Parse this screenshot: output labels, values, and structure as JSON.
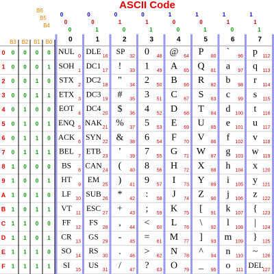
{
  "title": "ASCII Code",
  "header": {
    "high_bits": [
      "B6",
      "B5",
      "B4"
    ],
    "low_bits": [
      "B3",
      "B2",
      "B1",
      "B0"
    ]
  },
  "columns": [
    {
      "label": "0",
      "bits": [
        "0",
        "0",
        "0"
      ]
    },
    {
      "label": "1",
      "bits": [
        "0",
        "0",
        "1"
      ]
    },
    {
      "label": "2",
      "bits": [
        "0",
        "1",
        "0"
      ]
    },
    {
      "label": "3",
      "bits": [
        "0",
        "1",
        "1"
      ]
    },
    {
      "label": "4",
      "bits": [
        "1",
        "0",
        "0"
      ]
    },
    {
      "label": "5",
      "bits": [
        "1",
        "0",
        "1"
      ]
    },
    {
      "label": "6",
      "bits": [
        "1",
        "1",
        "0"
      ]
    },
    {
      "label": "7",
      "bits": [
        "1",
        "1",
        "1"
      ]
    }
  ],
  "rows": [
    {
      "label": "0",
      "bits": [
        "0",
        "0",
        "0",
        "0"
      ],
      "cells": [
        [
          "NUL",
          0
        ],
        [
          "DLE",
          16
        ],
        [
          "SP",
          32
        ],
        [
          "0",
          48
        ],
        [
          "@",
          64
        ],
        [
          "P",
          80
        ],
        [
          "`",
          96
        ],
        [
          "p",
          112
        ]
      ]
    },
    {
      "label": "1",
      "bits": [
        "0",
        "0",
        "0",
        "1"
      ],
      "cells": [
        [
          "SOH",
          1
        ],
        [
          "DC1",
          17
        ],
        [
          "!",
          33
        ],
        [
          "1",
          49
        ],
        [
          "A",
          65
        ],
        [
          "Q",
          81
        ],
        [
          "a",
          97
        ],
        [
          "q",
          113
        ]
      ]
    },
    {
      "label": "2",
      "bits": [
        "0",
        "0",
        "1",
        "0"
      ],
      "cells": [
        [
          "STX",
          2
        ],
        [
          "DC2",
          18
        ],
        [
          "\"",
          34
        ],
        [
          "2",
          50
        ],
        [
          "B",
          66
        ],
        [
          "R",
          82
        ],
        [
          "b",
          98
        ],
        [
          "r",
          114
        ]
      ]
    },
    {
      "label": "3",
      "bits": [
        "0",
        "0",
        "1",
        "1"
      ],
      "cells": [
        [
          "ETX",
          3
        ],
        [
          "DC3",
          19
        ],
        [
          "#",
          35
        ],
        [
          "3",
          51
        ],
        [
          "C",
          67
        ],
        [
          "S",
          83
        ],
        [
          "c",
          99
        ],
        [
          "s",
          115
        ]
      ]
    },
    {
      "label": "4",
      "bits": [
        "0",
        "1",
        "0",
        "0"
      ],
      "cells": [
        [
          "EOT",
          4
        ],
        [
          "DC4",
          20
        ],
        [
          "$",
          36
        ],
        [
          "4",
          52
        ],
        [
          "D",
          68
        ],
        [
          "T",
          84
        ],
        [
          "d",
          100
        ],
        [
          "t",
          116
        ]
      ]
    },
    {
      "label": "5",
      "bits": [
        "0",
        "1",
        "0",
        "1"
      ],
      "cells": [
        [
          "ENQ",
          5
        ],
        [
          "NAK",
          21
        ],
        [
          "%",
          37
        ],
        [
          "5",
          53
        ],
        [
          "E",
          69
        ],
        [
          "U",
          85
        ],
        [
          "e",
          101
        ],
        [
          "u",
          117
        ]
      ]
    },
    {
      "label": "6",
      "bits": [
        "0",
        "1",
        "1",
        "0"
      ],
      "cells": [
        [
          "ACK",
          6
        ],
        [
          "SYN",
          22
        ],
        [
          "&",
          38
        ],
        [
          "6",
          54
        ],
        [
          "F",
          70
        ],
        [
          "V",
          86
        ],
        [
          "f",
          102
        ],
        [
          "v",
          118
        ]
      ]
    },
    {
      "label": "7",
      "bits": [
        "0",
        "1",
        "1",
        "1"
      ],
      "cells": [
        [
          "BEL",
          7
        ],
        [
          "ETB",
          23
        ],
        [
          "'",
          39
        ],
        [
          "7",
          55
        ],
        [
          "G",
          71
        ],
        [
          "W",
          87
        ],
        [
          "g",
          103
        ],
        [
          "w",
          119
        ]
      ]
    },
    {
      "label": "8",
      "bits": [
        "1",
        "0",
        "0",
        "0"
      ],
      "cells": [
        [
          "BS",
          8
        ],
        [
          "CAN",
          24
        ],
        [
          "(",
          40
        ],
        [
          "8",
          56
        ],
        [
          "H",
          72
        ],
        [
          "X",
          88
        ],
        [
          "h",
          104
        ],
        [
          "x",
          120
        ]
      ]
    },
    {
      "label": "9",
      "bits": [
        "1",
        "0",
        "0",
        "1"
      ],
      "cells": [
        [
          "HT",
          9
        ],
        [
          "EM",
          25
        ],
        [
          ")",
          41
        ],
        [
          "9",
          57
        ],
        [
          "I",
          73
        ],
        [
          "Y",
          89
        ],
        [
          "i",
          105
        ],
        [
          "y",
          121
        ]
      ]
    },
    {
      "label": "A",
      "bits": [
        "1",
        "0",
        "1",
        "0"
      ],
      "cells": [
        [
          "LF",
          10
        ],
        [
          "SUB",
          26
        ],
        [
          "*",
          42
        ],
        [
          ":",
          58
        ],
        [
          "J",
          74
        ],
        [
          "Z",
          90
        ],
        [
          "j",
          106
        ],
        [
          "z",
          122
        ]
      ]
    },
    {
      "label": "B",
      "bits": [
        "1",
        "0",
        "1",
        "1"
      ],
      "cells": [
        [
          "VT",
          11
        ],
        [
          "ESC",
          27
        ],
        [
          "+",
          43
        ],
        [
          ";",
          59
        ],
        [
          "K",
          75
        ],
        [
          "[",
          91
        ],
        [
          "k",
          107
        ],
        [
          "{",
          123
        ]
      ]
    },
    {
      "label": "C",
      "bits": [
        "1",
        "1",
        "0",
        "0"
      ],
      "cells": [
        [
          "FF",
          12
        ],
        [
          "FS",
          28
        ],
        [
          ",",
          44
        ],
        [
          "<",
          60
        ],
        [
          "L",
          76
        ],
        [
          "\\",
          92
        ],
        [
          "l",
          108
        ],
        [
          "|",
          124
        ]
      ]
    },
    {
      "label": "D",
      "bits": [
        "1",
        "1",
        "0",
        "1"
      ],
      "cells": [
        [
          "CR",
          13
        ],
        [
          "GS",
          29
        ],
        [
          "-",
          45
        ],
        [
          "=",
          61
        ],
        [
          "M",
          77
        ],
        [
          "]",
          93
        ],
        [
          "m",
          109
        ],
        [
          "}",
          125
        ]
      ]
    },
    {
      "label": "E",
      "bits": [
        "1",
        "1",
        "1",
        "0"
      ],
      "cells": [
        [
          "SO",
          14
        ],
        [
          "RS",
          30
        ],
        [
          ".",
          46
        ],
        [
          ">",
          62
        ],
        [
          "N",
          78
        ],
        [
          "^",
          94
        ],
        [
          "n",
          110
        ],
        [
          "~",
          126
        ]
      ]
    },
    {
      "label": "F",
      "bits": [
        "1",
        "1",
        "1",
        "1"
      ],
      "cells": [
        [
          "SI",
          15
        ],
        [
          "US",
          31
        ],
        [
          "/",
          47
        ],
        [
          "?",
          63
        ],
        [
          "O",
          79
        ],
        [
          "_",
          95
        ],
        [
          "o",
          111
        ],
        [
          "DEL",
          127
        ]
      ]
    }
  ]
}
